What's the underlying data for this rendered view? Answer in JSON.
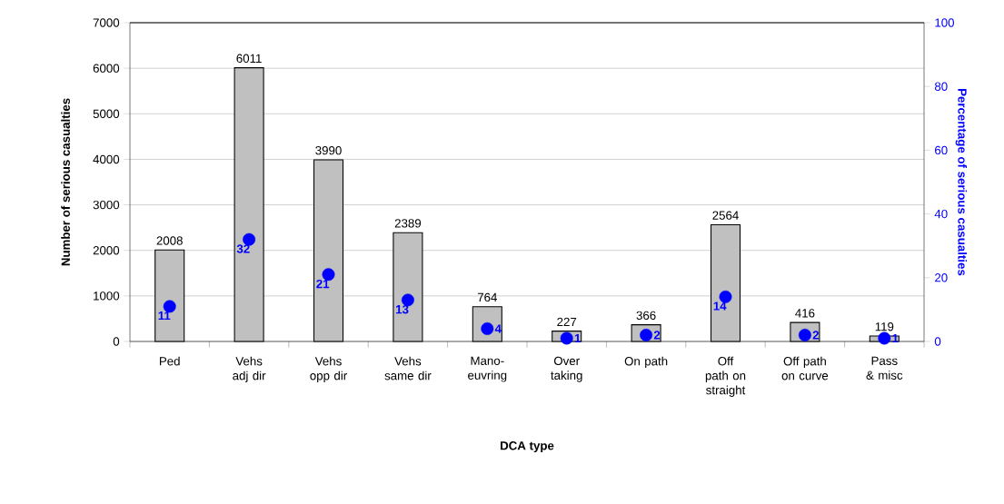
{
  "chart_data": {
    "type": "bar",
    "xlabel": "DCA type",
    "ylabel": "Number of serious casualties",
    "y2label": "Percentage of serious casualties",
    "categories": [
      "Ped",
      "Vehs adj dir",
      "Vehs opp dir",
      "Vehs same dir",
      "Mano-euvring",
      "Over taking",
      "On path",
      "Off path on straight",
      "Off path on curve",
      "Pass & misc"
    ],
    "series": [
      {
        "color": "#c0c0c0",
        "values": [
          2008,
          6011,
          3990,
          2389,
          764,
          227,
          366,
          2564,
          416,
          119
        ]
      },
      {
        "type": "scatter",
        "axis": "y2",
        "marker": "circle",
        "color": "#0000ff",
        "values": [
          11,
          32,
          21,
          13,
          4,
          1,
          2,
          14,
          2,
          1
        ]
      }
    ],
    "ylim": [
      0,
      7000
    ],
    "yticks": [
      0,
      1000,
      2000,
      3000,
      4000,
      5000,
      6000,
      7000
    ],
    "y2lim": [
      0,
      100
    ],
    "y2ticks": [
      0,
      20,
      40,
      60,
      80,
      100
    ],
    "grid": "y",
    "data_labels": true
  }
}
